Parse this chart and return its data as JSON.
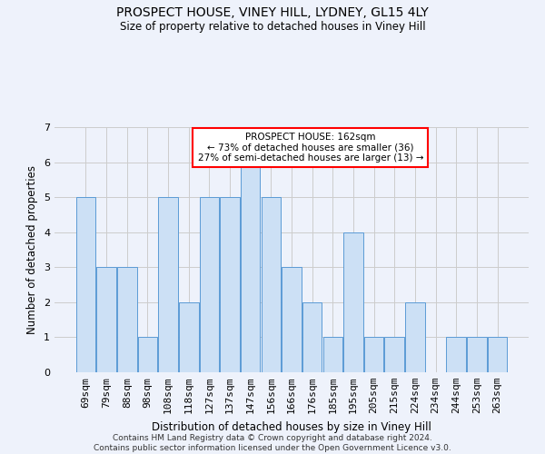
{
  "title1": "PROSPECT HOUSE, VINEY HILL, LYDNEY, GL15 4LY",
  "title2": "Size of property relative to detached houses in Viney Hill",
  "xlabel": "Distribution of detached houses by size in Viney Hill",
  "ylabel": "Number of detached properties",
  "categories": [
    "69sqm",
    "79sqm",
    "88sqm",
    "98sqm",
    "108sqm",
    "118sqm",
    "127sqm",
    "137sqm",
    "147sqm",
    "156sqm",
    "166sqm",
    "176sqm",
    "185sqm",
    "195sqm",
    "205sqm",
    "215sqm",
    "224sqm",
    "234sqm",
    "244sqm",
    "253sqm",
    "263sqm"
  ],
  "values": [
    5,
    3,
    3,
    1,
    5,
    2,
    5,
    5,
    6,
    5,
    3,
    2,
    1,
    4,
    1,
    1,
    2,
    0,
    1,
    1,
    1
  ],
  "bar_color": "#cce0f5",
  "bar_edge_color": "#5b9bd5",
  "annotation_text": "PROSPECT HOUSE: 162sqm\n← 73% of detached houses are smaller (36)\n27% of semi-detached houses are larger (13) →",
  "annotation_box_color": "white",
  "annotation_box_edge_color": "red",
  "ylim": [
    0,
    7
  ],
  "yticks": [
    0,
    1,
    2,
    3,
    4,
    5,
    6,
    7
  ],
  "grid_color": "#cccccc",
  "bg_color": "#eef2fb",
  "footer1": "Contains HM Land Registry data © Crown copyright and database right 2024.",
  "footer2": "Contains public sector information licensed under the Open Government Licence v3.0."
}
